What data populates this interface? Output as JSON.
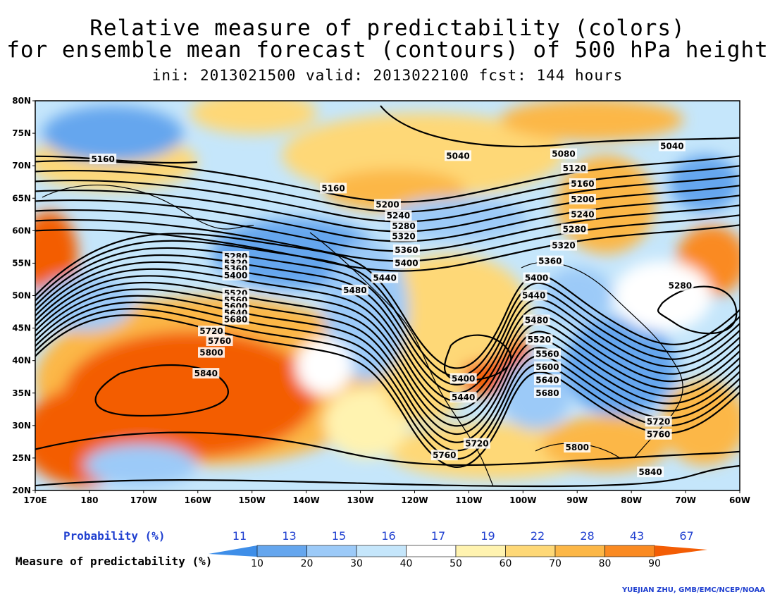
{
  "title": {
    "line1": "Relative measure of predictability (colors)",
    "line2": "for ensemble mean forecast (contours) of 500 hPa height",
    "line3": "ini: 2013021500 valid: 2013022100 fcst: 144 hours"
  },
  "axes": {
    "lon_labels": [
      "170E",
      "180",
      "170W",
      "160W",
      "150W",
      "140W",
      "130W",
      "120W",
      "110W",
      "100W",
      "90W",
      "80W",
      "70W",
      "60W"
    ],
    "lat_labels": [
      "80N",
      "75N",
      "70N",
      "65N",
      "60N",
      "55N",
      "50N",
      "45N",
      "40N",
      "35N",
      "30N",
      "25N",
      "20N"
    ],
    "lon_range": [
      170,
      300
    ],
    "lat_range": [
      20,
      80
    ]
  },
  "contour_labels": [
    {
      "text": "5160",
      "lon": -177.5,
      "lat": 71.0
    },
    {
      "text": "5160",
      "lon": -135.0,
      "lat": 66.5
    },
    {
      "text": "5040",
      "lon": -112.0,
      "lat": 71.5
    },
    {
      "text": "5080",
      "lon": -92.5,
      "lat": 71.8
    },
    {
      "text": "5040",
      "lon": -72.5,
      "lat": 73.0
    },
    {
      "text": "5120",
      "lon": -90.5,
      "lat": 69.6
    },
    {
      "text": "5160",
      "lon": -89.0,
      "lat": 67.2
    },
    {
      "text": "5200",
      "lon": -89.0,
      "lat": 64.8
    },
    {
      "text": "5240",
      "lon": -89.0,
      "lat": 62.5
    },
    {
      "text": "5280",
      "lon": -90.5,
      "lat": 60.2
    },
    {
      "text": "5320",
      "lon": -92.5,
      "lat": 57.7
    },
    {
      "text": "5360",
      "lon": -95.0,
      "lat": 55.3
    },
    {
      "text": "5400",
      "lon": -97.5,
      "lat": 52.7
    },
    {
      "text": "5440",
      "lon": -98.0,
      "lat": 50.0
    },
    {
      "text": "5480",
      "lon": -97.5,
      "lat": 46.2
    },
    {
      "text": "5520",
      "lon": -97.0,
      "lat": 43.2
    },
    {
      "text": "5560",
      "lon": -95.5,
      "lat": 41.0
    },
    {
      "text": "5600",
      "lon": -95.5,
      "lat": 39.0
    },
    {
      "text": "5640",
      "lon": -95.5,
      "lat": 37.0
    },
    {
      "text": "5680",
      "lon": -95.5,
      "lat": 35.0
    },
    {
      "text": "5720",
      "lon": -75.0,
      "lat": 30.6
    },
    {
      "text": "5760",
      "lon": -75.0,
      "lat": 28.6
    },
    {
      "text": "5800",
      "lon": -90.0,
      "lat": 26.6
    },
    {
      "text": "5840",
      "lon": -76.5,
      "lat": 22.8
    },
    {
      "text": "5280",
      "lon": -71.0,
      "lat": 51.5
    },
    {
      "text": "5200",
      "lon": -125.0,
      "lat": 64.0
    },
    {
      "text": "5240",
      "lon": -123.0,
      "lat": 62.3
    },
    {
      "text": "5280",
      "lon": -122.0,
      "lat": 60.7
    },
    {
      "text": "5320",
      "lon": -122.0,
      "lat": 59.1
    },
    {
      "text": "5360",
      "lon": -121.5,
      "lat": 57.0
    },
    {
      "text": "5400",
      "lon": -121.5,
      "lat": 55.0
    },
    {
      "text": "5440",
      "lon": -125.5,
      "lat": 52.7
    },
    {
      "text": "5480",
      "lon": -131.0,
      "lat": 50.8
    },
    {
      "text": "5400",
      "lon": -111.0,
      "lat": 37.2
    },
    {
      "text": "5440",
      "lon": -111.0,
      "lat": 34.3
    },
    {
      "text": "5720",
      "lon": -108.5,
      "lat": 27.2
    },
    {
      "text": "5760",
      "lon": -114.5,
      "lat": 25.4
    },
    {
      "text": "5280",
      "lon": -153.0,
      "lat": 56.0
    },
    {
      "text": "5320",
      "lon": -153.0,
      "lat": 55.0
    },
    {
      "text": "5360",
      "lon": -153.0,
      "lat": 54.1
    },
    {
      "text": "5400",
      "lon": -153.0,
      "lat": 53.1
    },
    {
      "text": "5520",
      "lon": -153.0,
      "lat": 50.3
    },
    {
      "text": "5560",
      "lon": -153.0,
      "lat": 49.3
    },
    {
      "text": "5600",
      "lon": -153.0,
      "lat": 48.3
    },
    {
      "text": "5640",
      "lon": -153.0,
      "lat": 47.3
    },
    {
      "text": "5680",
      "lon": -153.0,
      "lat": 46.3
    },
    {
      "text": "5720",
      "lon": -157.5,
      "lat": 44.5
    },
    {
      "text": "5760",
      "lon": -156.0,
      "lat": 43.0
    },
    {
      "text": "5800",
      "lon": -157.5,
      "lat": 41.2
    },
    {
      "text": "5840",
      "lon": -158.5,
      "lat": 38.0
    }
  ],
  "legend": {
    "probability_title": "Probability (%)",
    "measure_title": "Measure of predictability (%)",
    "probabilities": [
      "11",
      "13",
      "15",
      "16",
      "17",
      "19",
      "22",
      "28",
      "43",
      "67"
    ],
    "boundaries": [
      "10",
      "20",
      "30",
      "40",
      "50",
      "60",
      "70",
      "80",
      "90"
    ],
    "colors": [
      "#3e8ee8",
      "#65a6ee",
      "#9ccaf8",
      "#c5e6fb",
      "#ffffff",
      "#fff3b0",
      "#fed877",
      "#fcb747",
      "#fa8a22",
      "#f35d05"
    ]
  },
  "credit": "YUEJIAN ZHU, GMB/EMC/NCEP/NOAA"
}
